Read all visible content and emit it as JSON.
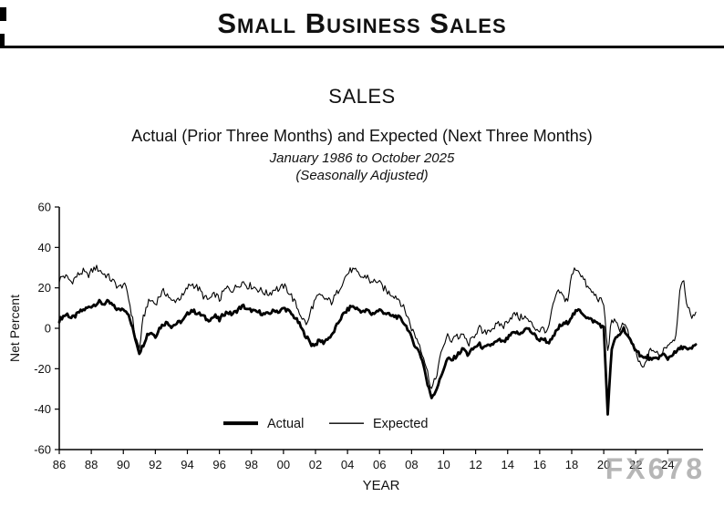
{
  "header": {
    "title": "Small Business Sales"
  },
  "watermark": "FX678",
  "chart_data": {
    "type": "line",
    "title": "SALES",
    "subtitle": "Actual (Prior Three Months) and Expected (Next Three Months)",
    "date_range": "January 1986 to October 2025",
    "note": "(Seasonally Adjusted)",
    "xlabel": "YEAR",
    "ylabel": "Net Percent",
    "ylim": [
      -60,
      60
    ],
    "yticks": [
      60,
      40,
      20,
      0,
      -20,
      -40,
      -60
    ],
    "xticks": [
      "86",
      "88",
      "90",
      "92",
      "94",
      "96",
      "98",
      "00",
      "02",
      "04",
      "06",
      "08",
      "10",
      "12",
      "14",
      "16",
      "18",
      "20",
      "22",
      "24"
    ],
    "x_start": 1986,
    "x_step": 0.25,
    "grid": false,
    "legend_position": "inside-bottom-center",
    "series": [
      {
        "name": "Actual",
        "width": 2.8,
        "noise": 1.0,
        "values": [
          4,
          6,
          7,
          5,
          6,
          8,
          9,
          10,
          11,
          12,
          13,
          12,
          13,
          12,
          10,
          9,
          10,
          8,
          2,
          -5,
          -12,
          -8,
          -3,
          -2,
          -4,
          0,
          2,
          3,
          1,
          2,
          3,
          4,
          7,
          9,
          8,
          7,
          6,
          4,
          5,
          6,
          4,
          7,
          8,
          7,
          8,
          10,
          11,
          9,
          9,
          8,
          8,
          7,
          7,
          8,
          9,
          8,
          10,
          9,
          7,
          5,
          2,
          -2,
          -5,
          -8,
          -8,
          -6,
          -7,
          -5,
          -4,
          0,
          4,
          7,
          9,
          11,
          10,
          9,
          8,
          9,
          7,
          8,
          9,
          8,
          7,
          6,
          6,
          5,
          3,
          0,
          -5,
          -9,
          -12,
          -18,
          -28,
          -34,
          -31,
          -26,
          -20,
          -15,
          -16,
          -14,
          -12,
          -10,
          -13,
          -11,
          -9,
          -8,
          -10,
          -9,
          -8,
          -7,
          -6,
          -7,
          -5,
          -3,
          -2,
          -3,
          -1,
          0,
          -2,
          -4,
          -6,
          -5,
          -7,
          -6,
          -2,
          1,
          2,
          3,
          6,
          8,
          9,
          7,
          5,
          4,
          3,
          2,
          0,
          -42,
          -10,
          -5,
          -3,
          0,
          -4,
          -8,
          -10,
          -13,
          -15,
          -14,
          -16,
          -15,
          -14,
          -13,
          -15,
          -13,
          -12,
          -10,
          -9,
          -11,
          -10,
          -8
        ]
      },
      {
        "name": "Expected",
        "width": 1.1,
        "noise": 1.8,
        "values": [
          24,
          26,
          25,
          23,
          25,
          27,
          28,
          26,
          28,
          30,
          29,
          27,
          26,
          24,
          22,
          20,
          22,
          18,
          8,
          -4,
          -10,
          5,
          12,
          14,
          12,
          16,
          18,
          17,
          13,
          14,
          15,
          16,
          20,
          22,
          21,
          19,
          16,
          14,
          15,
          17,
          14,
          18,
          20,
          19,
          20,
          22,
          23,
          21,
          21,
          20,
          19,
          18,
          17,
          18,
          20,
          19,
          21,
          19,
          16,
          12,
          8,
          4,
          2,
          10,
          14,
          16,
          15,
          14,
          13,
          16,
          20,
          24,
          27,
          29,
          28,
          26,
          25,
          26,
          22,
          24,
          22,
          20,
          18,
          17,
          16,
          14,
          10,
          6,
          0,
          -4,
          -8,
          -14,
          -22,
          -30,
          -25,
          -16,
          -8,
          -4,
          -6,
          -3,
          -5,
          -3,
          -8,
          -6,
          -2,
          0,
          -3,
          -1,
          0,
          1,
          2,
          1,
          4,
          6,
          7,
          5,
          6,
          4,
          2,
          0,
          -1,
          0,
          -2,
          8,
          16,
          18,
          15,
          14,
          26,
          30,
          28,
          24,
          20,
          18,
          16,
          14,
          12,
          -12,
          5,
          2,
          0,
          3,
          -2,
          -8,
          -12,
          -18,
          -20,
          -14,
          -10,
          -12,
          -14,
          -10,
          -8,
          -6,
          -4,
          20,
          22,
          10,
          6,
          8
        ]
      }
    ]
  }
}
